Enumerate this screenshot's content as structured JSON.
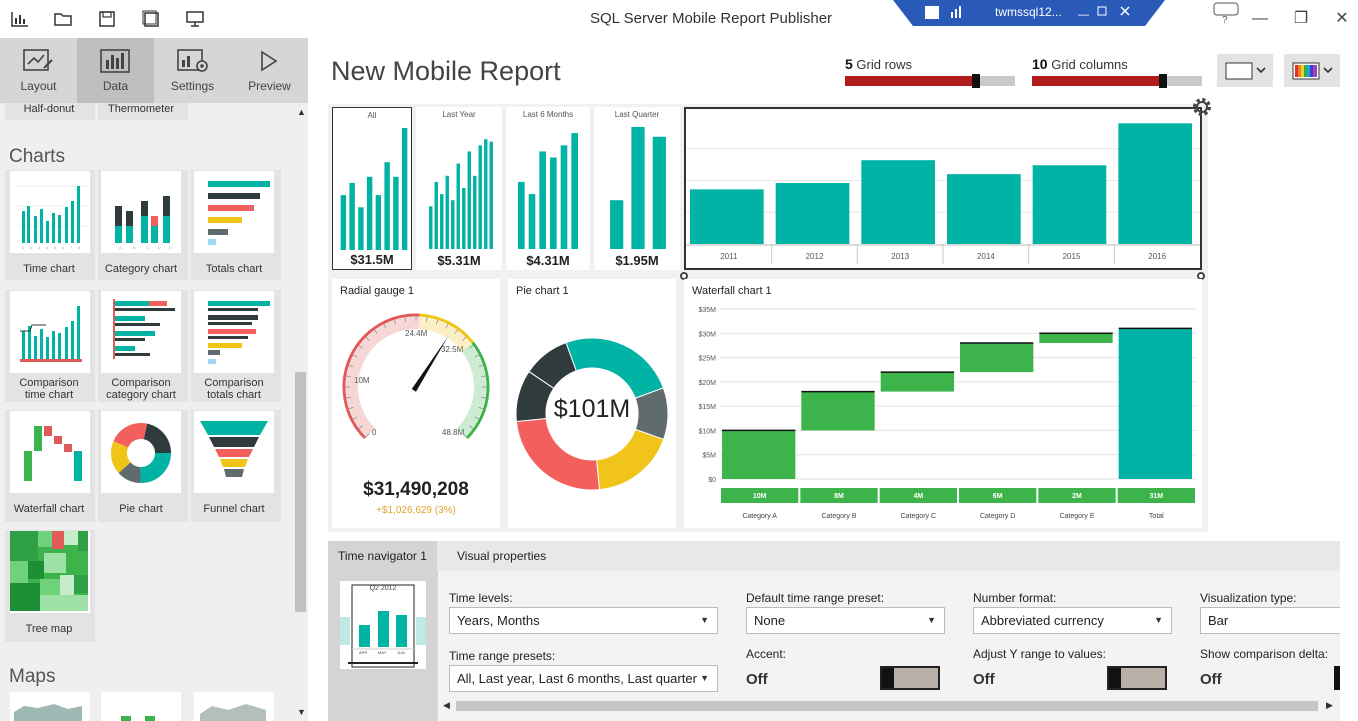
{
  "app": {
    "title": "SQL Server Mobile Report Publisher",
    "server": "twmssql12..."
  },
  "toolbar": {
    "icons": [
      "report-icon",
      "open-icon",
      "save-icon",
      "save-as-icon",
      "publish-icon"
    ]
  },
  "left_tabs": [
    {
      "label": "Layout",
      "icon": "layout-icon"
    },
    {
      "label": "Data",
      "icon": "data-icon"
    },
    {
      "label": "Settings",
      "icon": "settings-icon"
    },
    {
      "label": "Preview",
      "icon": "preview-icon"
    }
  ],
  "gallery": {
    "top_items": [
      "Half-donut",
      "Thermometer"
    ],
    "charts_header": "Charts",
    "charts": [
      {
        "label": "Time chart"
      },
      {
        "label": "Category chart"
      },
      {
        "label": "Totals chart"
      },
      {
        "label": "Comparison time chart"
      },
      {
        "label": "Comparison category chart"
      },
      {
        "label": "Comparison totals chart"
      },
      {
        "label": "Waterfall chart"
      },
      {
        "label": "Pie chart"
      },
      {
        "label": "Funnel chart"
      },
      {
        "label": "Tree map"
      }
    ],
    "maps_header": "Maps"
  },
  "report": {
    "title": "New Mobile Report",
    "grid_rows": {
      "value": "5",
      "label": "Grid rows",
      "fraction": 0.77
    },
    "grid_columns": {
      "value": "10",
      "label": "Grid columns",
      "fraction": 0.77
    }
  },
  "colors": {
    "teal": "#00b3a4",
    "red": "#b31c1c",
    "green": "#3cb44b",
    "gauge_red": "#e05a5a",
    "gauge_yellow": "#f0c419"
  },
  "navigator": {
    "items": [
      {
        "label": "All",
        "value": "$31.5M",
        "bars": [
          0.45,
          0.55,
          0.35,
          0.6,
          0.45,
          0.72,
          0.6,
          1.0
        ]
      },
      {
        "label": "Last Year",
        "value": "$5.31M",
        "bars": [
          0.35,
          0.55,
          0.45,
          0.6,
          0.4,
          0.7,
          0.5,
          0.8,
          0.6,
          0.85,
          0.9,
          0.88
        ]
      },
      {
        "label": "Last 6 Months",
        "value": "$4.31M",
        "bars": [
          0.55,
          0.45,
          0.8,
          0.75,
          0.85,
          0.95
        ]
      },
      {
        "label": "Last Quarter",
        "value": "$1.95M",
        "bars": [
          0.4,
          1.0,
          0.92
        ]
      }
    ]
  },
  "chart_data": [
    {
      "type": "bar",
      "categories": [
        "2011",
        "2012",
        "2013",
        "2014",
        "2015",
        "2016"
      ],
      "values": [
        4.3,
        4.8,
        6.6,
        5.5,
        6.2,
        9.5
      ]
    },
    {
      "type": "bar",
      "title": "Waterfall chart 1",
      "categories": [
        "Category A",
        "Category B",
        "Category C",
        "Category D",
        "Category E",
        "Total"
      ],
      "values": [
        10,
        8,
        4,
        6,
        2,
        31
      ],
      "value_labels": [
        "10M",
        "8M",
        "4M",
        "6M",
        "2M",
        "31M"
      ],
      "y_ticks": [
        "$0",
        "$5M",
        "$10M",
        "$15M",
        "$20M",
        "$25M",
        "$30M",
        "$35M"
      ],
      "ylim": [
        0,
        35
      ]
    },
    {
      "type": "pie",
      "title": "Pie chart 1",
      "center_label": "$101M",
      "values": [
        25,
        11,
        18,
        25,
        11,
        10
      ],
      "colors": [
        "#00b3a4",
        "#5f6b6c",
        "#f0c419",
        "#f25f5c",
        "#2f3b3d",
        "#2f3b3d"
      ]
    }
  ],
  "gauge": {
    "title": "Radial gauge 1",
    "ticks": [
      "0",
      "10M",
      "24.4M",
      "32.5M",
      "48.8M"
    ],
    "value": "$31,490,208",
    "delta": "+$1,026,629 (3%)",
    "fraction": 0.62
  },
  "props": {
    "tabs": [
      "Time navigator 1",
      "Visual properties"
    ],
    "preview": {
      "label": "Q2 2012",
      "months": [
        "APR",
        "MAY",
        "JUN"
      ]
    },
    "fields": {
      "time_levels": {
        "label": "Time levels:",
        "value": "Years, Months"
      },
      "time_range_presets": {
        "label": "Time range presets:",
        "value": "All, Last year, Last 6 months, Last quarter"
      },
      "default_preset": {
        "label": "Default time range preset:",
        "value": "None"
      },
      "accent": {
        "label": "Accent:",
        "value": "Off"
      },
      "number_format": {
        "label": "Number format:",
        "value": "Abbreviated currency"
      },
      "adjust_y": {
        "label": "Adjust Y range to values:",
        "value": "Off"
      },
      "vis_type": {
        "label": "Visualization type:",
        "value": "Bar"
      },
      "show_delta": {
        "label": "Show comparison delta:",
        "value": "Off"
      }
    }
  }
}
